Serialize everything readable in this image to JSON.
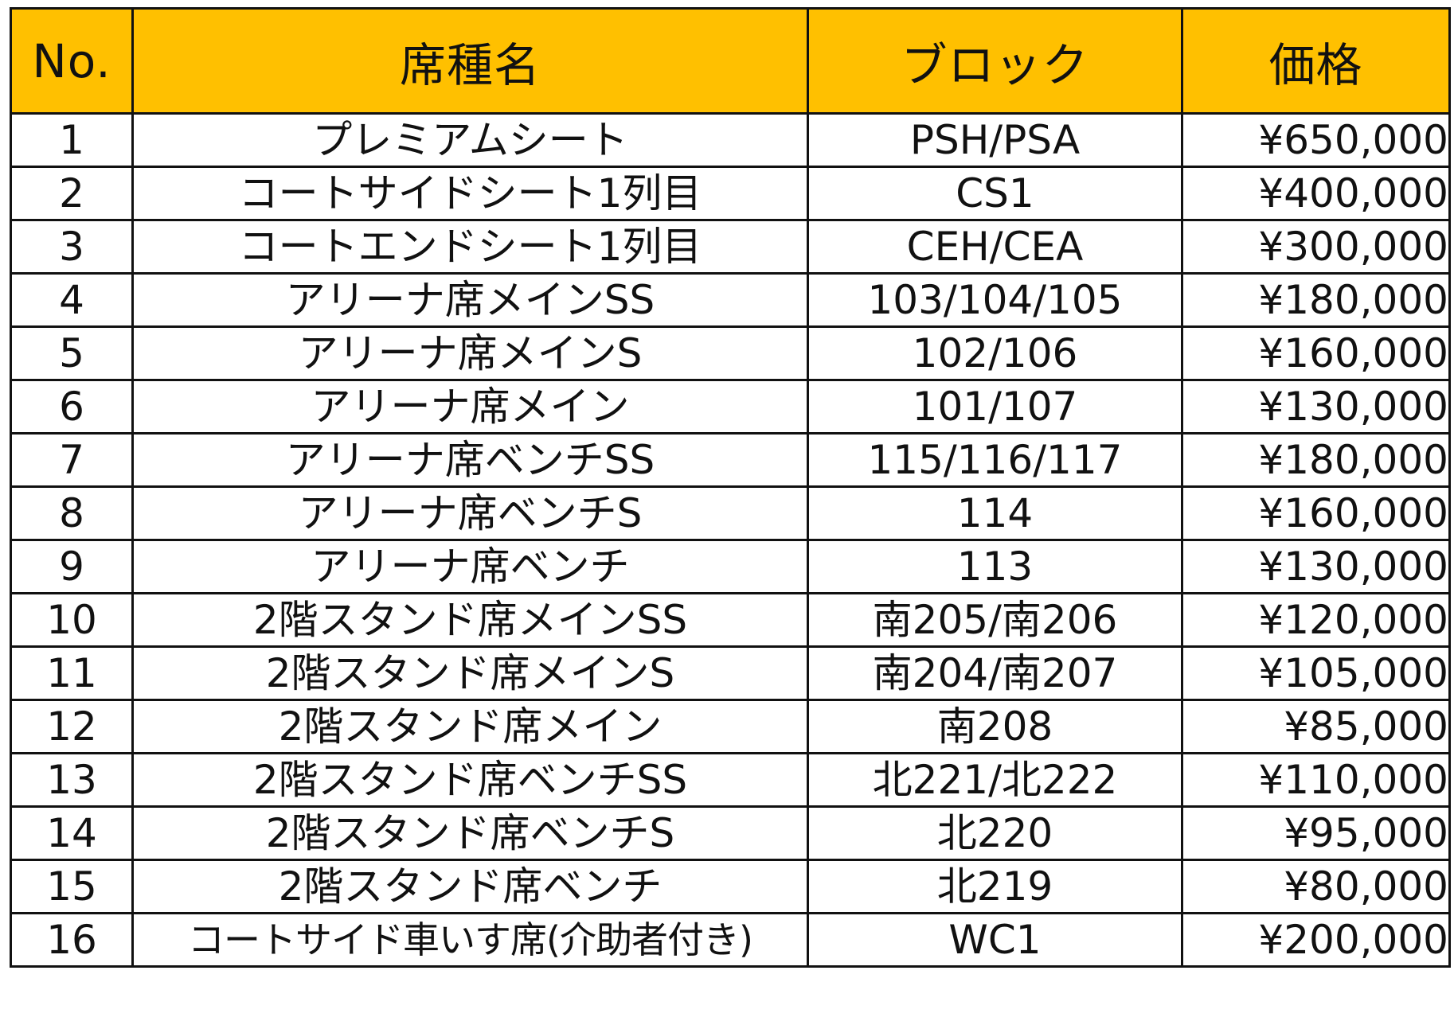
{
  "header": {
    "no": "No.",
    "name": "席種名",
    "block": "ブロック",
    "price": "価格"
  },
  "rows": [
    {
      "no": "1",
      "name": "プレミアムシート",
      "block": "PSH/PSA",
      "price": "¥650,000"
    },
    {
      "no": "2",
      "name": "コートサイドシート1列目",
      "block": "CS1",
      "price": "¥400,000"
    },
    {
      "no": "3",
      "name": "コートエンドシート1列目",
      "block": "CEH/CEA",
      "price": "¥300,000"
    },
    {
      "no": "4",
      "name": "アリーナ席メインSS",
      "block": "103/104/105",
      "price": "¥180,000"
    },
    {
      "no": "5",
      "name": "アリーナ席メインS",
      "block": "102/106",
      "price": "¥160,000"
    },
    {
      "no": "6",
      "name": "アリーナ席メイン",
      "block": "101/107",
      "price": "¥130,000"
    },
    {
      "no": "7",
      "name": "アリーナ席ベンチSS",
      "block": "115/116/117",
      "price": "¥180,000"
    },
    {
      "no": "8",
      "name": "アリーナ席ベンチS",
      "block": "114",
      "price": "¥160,000"
    },
    {
      "no": "9",
      "name": "アリーナ席ベンチ",
      "block": "113",
      "price": "¥130,000"
    },
    {
      "no": "10",
      "name": "2階スタンド席メインSS",
      "block": "南205/南206",
      "price": "¥120,000"
    },
    {
      "no": "11",
      "name": "2階スタンド席メインS",
      "block": "南204/南207",
      "price": "¥105,000"
    },
    {
      "no": "12",
      "name": "2階スタンド席メイン",
      "block": "南208",
      "price": "¥85,000"
    },
    {
      "no": "13",
      "name": "2階スタンド席ベンチSS",
      "block": "北221/北222",
      "price": "¥110,000"
    },
    {
      "no": "14",
      "name": "2階スタンド席ベンチS",
      "block": "北220",
      "price": "¥95,000"
    },
    {
      "no": "15",
      "name": "2階スタンド席ベンチ",
      "block": "北219",
      "price": "¥80,000"
    },
    {
      "no": "16",
      "name": "コートサイド車いす席(介助者付き)",
      "block": "WC1",
      "price": "¥200,000"
    }
  ],
  "colors": {
    "header_bg": "#ffc000",
    "border": "#111111",
    "text": "#111111"
  }
}
